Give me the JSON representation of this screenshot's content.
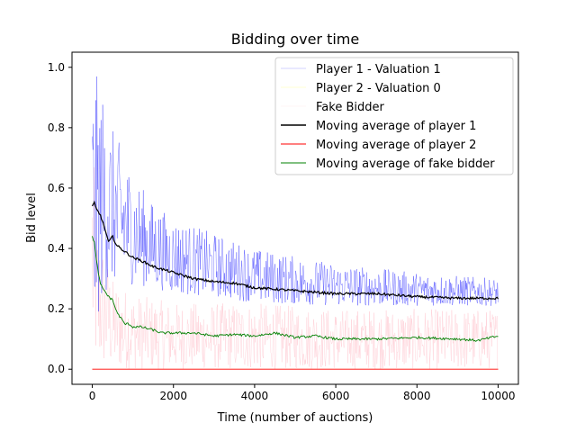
{
  "chart_data": {
    "type": "line",
    "title": "Bidding over time",
    "xlabel": "Time (number of auctions)",
    "ylabel": "Bid level",
    "xlim": [
      -500,
      10500
    ],
    "ylim": [
      -0.05,
      1.05
    ],
    "xticks": [
      0,
      2000,
      4000,
      6000,
      8000,
      10000
    ],
    "xtick_labels": [
      "0",
      "2000",
      "4000",
      "6000",
      "8000",
      "10000"
    ],
    "yticks": [
      0.0,
      0.2,
      0.4,
      0.6,
      0.8,
      1.0
    ],
    "ytick_labels": [
      "0.0",
      "0.2",
      "0.4",
      "0.6",
      "0.8",
      "1.0"
    ],
    "grid": false,
    "legend_position": "top-right",
    "n_auctions": 10000,
    "series": [
      {
        "name": "Player 1 - Valuation 1",
        "kind": "raw",
        "color": "#0000ff",
        "band": {
          "x": [
            0,
            100,
            300,
            500,
            1000,
            1500,
            2000,
            3000,
            4000,
            6000,
            8000,
            10000
          ],
          "low": [
            0.0,
            0.15,
            0.25,
            0.28,
            0.28,
            0.27,
            0.25,
            0.24,
            0.22,
            0.21,
            0.21,
            0.21
          ],
          "high": [
            1.0,
            0.98,
            0.9,
            0.8,
            0.65,
            0.55,
            0.5,
            0.45,
            0.4,
            0.35,
            0.32,
            0.3
          ]
        }
      },
      {
        "name": "Player 2 - Valuation 0",
        "kind": "raw",
        "color": "#ffff00",
        "band": {
          "x": [
            0,
            10000
          ],
          "low": [
            0.0,
            0.0
          ],
          "high": [
            0.0,
            0.0
          ]
        }
      },
      {
        "name": "Fake Bidder",
        "kind": "raw",
        "color": "#ffc0cb",
        "band": {
          "x": [
            0,
            100,
            500,
            1000,
            2000,
            4000,
            6000,
            8000,
            10000
          ],
          "low": [
            0.0,
            0.0,
            0.0,
            0.0,
            0.0,
            0.0,
            0.0,
            0.0,
            0.0
          ],
          "high": [
            0.8,
            0.5,
            0.3,
            0.25,
            0.22,
            0.22,
            0.2,
            0.2,
            0.2
          ]
        }
      },
      {
        "name": "Moving average of player 1",
        "kind": "average",
        "color": "#000000",
        "x": [
          0,
          50,
          100,
          200,
          300,
          400,
          500,
          600,
          800,
          1000,
          1200,
          1500,
          2000,
          2500,
          3000,
          3500,
          4000,
          4500,
          5000,
          5500,
          6000,
          7000,
          8000,
          9000,
          10000
        ],
        "y": [
          0.54,
          0.55,
          0.53,
          0.51,
          0.47,
          0.42,
          0.44,
          0.41,
          0.39,
          0.37,
          0.36,
          0.34,
          0.32,
          0.3,
          0.29,
          0.285,
          0.27,
          0.265,
          0.26,
          0.255,
          0.25,
          0.25,
          0.24,
          0.235,
          0.235
        ]
      },
      {
        "name": "Moving average of player 2",
        "kind": "average",
        "color": "#ff0000",
        "x": [
          0,
          10000
        ],
        "y": [
          0.0,
          0.0
        ]
      },
      {
        "name": "Moving average of fake bidder",
        "kind": "average",
        "color": "#008000",
        "x": [
          0,
          50,
          100,
          200,
          300,
          400,
          500,
          600,
          700,
          800,
          900,
          1000,
          1200,
          1500,
          1700,
          2000,
          2500,
          3000,
          3500,
          4000,
          4500,
          5000,
          5500,
          6000,
          7000,
          8000,
          9000,
          9500,
          10000
        ],
        "y": [
          0.44,
          0.42,
          0.36,
          0.28,
          0.26,
          0.24,
          0.23,
          0.19,
          0.17,
          0.15,
          0.15,
          0.14,
          0.14,
          0.13,
          0.12,
          0.12,
          0.12,
          0.11,
          0.115,
          0.11,
          0.12,
          0.105,
          0.11,
          0.1,
          0.1,
          0.105,
          0.1,
          0.095,
          0.11
        ]
      }
    ]
  }
}
